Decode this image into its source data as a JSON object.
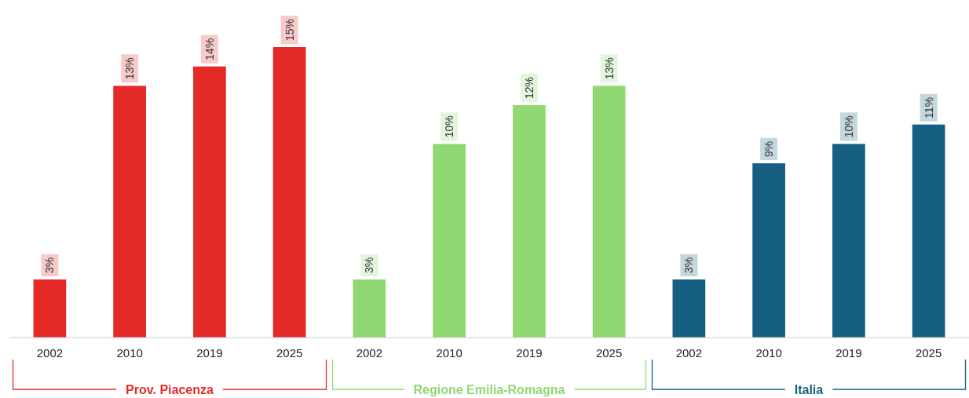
{
  "chart_data": {
    "type": "bar",
    "categories": [
      "2002",
      "2010",
      "2019",
      "2025",
      "2002",
      "2010",
      "2019",
      "2025",
      "2002",
      "2010",
      "2019",
      "2025"
    ],
    "series": [
      {
        "name": "Prov. Piacenza",
        "color": "#e32a27",
        "values": [
          3,
          13,
          14,
          15,
          null,
          null,
          null,
          null,
          null,
          null,
          null,
          null
        ],
        "value_labels": [
          "3%",
          "13%",
          "14%",
          "15%",
          null,
          null,
          null,
          null,
          null,
          null,
          null,
          null
        ]
      },
      {
        "name": "Regione Emilia-Romagna",
        "color": "#8fd872",
        "values": [
          null,
          null,
          null,
          null,
          3,
          10,
          12,
          13,
          null,
          null,
          null,
          null
        ],
        "value_labels": [
          null,
          null,
          null,
          null,
          "3%",
          "10%",
          "12%",
          "13%",
          null,
          null,
          null,
          null
        ]
      },
      {
        "name": "Italia",
        "color": "#155f80",
        "values": [
          null,
          null,
          null,
          null,
          null,
          null,
          null,
          null,
          3,
          9,
          10,
          11
        ],
        "value_labels": [
          null,
          null,
          null,
          null,
          null,
          null,
          null,
          null,
          "3%",
          "9%",
          "10%",
          "11%"
        ]
      }
    ]
  }
}
